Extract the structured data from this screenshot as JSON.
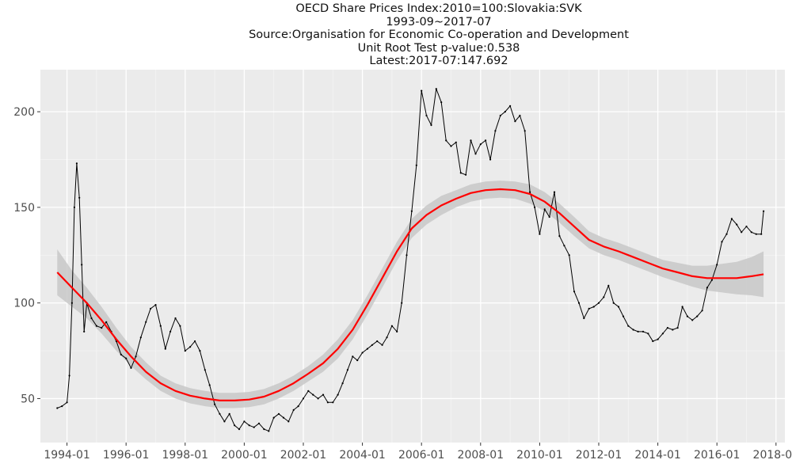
{
  "chart_data": {
    "type": "line",
    "title_lines": [
      "OECD Share Prices Index:2010=100:Slovakia:SVK",
      "1993-09~2017-07",
      "Source:Organisation for Economic Co-operation and Development",
      "Unit Root Test p-value:0.538",
      "Latest:2017-07:147.692"
    ],
    "xlabel": "",
    "ylabel": "",
    "x_tick_labels": [
      "1994-01",
      "1996-01",
      "1998-01",
      "2000-01",
      "2002-01",
      "2004-01",
      "2006-01",
      "2008-01",
      "2010-01",
      "2012-01",
      "2014-01",
      "2016-01",
      "2018-01"
    ],
    "x_tick_values": [
      1994.0,
      1996.0,
      1998.0,
      2000.0,
      2002.0,
      2004.0,
      2006.0,
      2008.0,
      2010.0,
      2012.0,
      2014.0,
      2016.0,
      2018.0
    ],
    "y_ticks": [
      50,
      100,
      150,
      200
    ],
    "xlim": [
      1993.1,
      2018.3
    ],
    "ylim": [
      27,
      222
    ],
    "grid": true,
    "background": "#ebebeb",
    "series": [
      {
        "color": "#000000",
        "points": [
          [
            1993.67,
            45
          ],
          [
            1993.83,
            46
          ],
          [
            1994.0,
            48
          ],
          [
            1994.08,
            62
          ],
          [
            1994.17,
            100
          ],
          [
            1994.25,
            150
          ],
          [
            1994.33,
            173
          ],
          [
            1994.42,
            155
          ],
          [
            1994.5,
            120
          ],
          [
            1994.58,
            85
          ],
          [
            1994.67,
            100
          ],
          [
            1994.83,
            92
          ],
          [
            1995.0,
            88
          ],
          [
            1995.17,
            87
          ],
          [
            1995.33,
            90
          ],
          [
            1995.5,
            85
          ],
          [
            1995.67,
            80
          ],
          [
            1995.83,
            73
          ],
          [
            1996.0,
            71
          ],
          [
            1996.17,
            66
          ],
          [
            1996.33,
            72
          ],
          [
            1996.5,
            82
          ],
          [
            1996.67,
            90
          ],
          [
            1996.83,
            97
          ],
          [
            1997.0,
            99
          ],
          [
            1997.17,
            88
          ],
          [
            1997.33,
            76
          ],
          [
            1997.5,
            85
          ],
          [
            1997.67,
            92
          ],
          [
            1997.83,
            88
          ],
          [
            1998.0,
            75
          ],
          [
            1998.17,
            77
          ],
          [
            1998.33,
            80
          ],
          [
            1998.5,
            75
          ],
          [
            1998.67,
            65
          ],
          [
            1998.83,
            57
          ],
          [
            1999.0,
            47
          ],
          [
            1999.17,
            42
          ],
          [
            1999.33,
            38
          ],
          [
            1999.5,
            42
          ],
          [
            1999.67,
            36
          ],
          [
            1999.83,
            34
          ],
          [
            2000.0,
            38
          ],
          [
            2000.17,
            36
          ],
          [
            2000.33,
            35
          ],
          [
            2000.5,
            37
          ],
          [
            2000.67,
            34
          ],
          [
            2000.83,
            33
          ],
          [
            2001.0,
            40
          ],
          [
            2001.17,
            42
          ],
          [
            2001.33,
            40
          ],
          [
            2001.5,
            38
          ],
          [
            2001.67,
            44
          ],
          [
            2001.83,
            46
          ],
          [
            2002.0,
            50
          ],
          [
            2002.17,
            54
          ],
          [
            2002.33,
            52
          ],
          [
            2002.5,
            50
          ],
          [
            2002.67,
            52
          ],
          [
            2002.83,
            48
          ],
          [
            2003.0,
            48
          ],
          [
            2003.17,
            52
          ],
          [
            2003.33,
            58
          ],
          [
            2003.5,
            65
          ],
          [
            2003.67,
            72
          ],
          [
            2003.83,
            70
          ],
          [
            2004.0,
            74
          ],
          [
            2004.17,
            76
          ],
          [
            2004.33,
            78
          ],
          [
            2004.5,
            80
          ],
          [
            2004.67,
            78
          ],
          [
            2004.83,
            82
          ],
          [
            2005.0,
            88
          ],
          [
            2005.17,
            85
          ],
          [
            2005.33,
            100
          ],
          [
            2005.5,
            125
          ],
          [
            2005.67,
            148
          ],
          [
            2005.83,
            172
          ],
          [
            2006.0,
            211
          ],
          [
            2006.17,
            198
          ],
          [
            2006.33,
            193
          ],
          [
            2006.5,
            212
          ],
          [
            2006.67,
            205
          ],
          [
            2006.83,
            185
          ],
          [
            2007.0,
            182
          ],
          [
            2007.17,
            184
          ],
          [
            2007.33,
            168
          ],
          [
            2007.5,
            167
          ],
          [
            2007.67,
            185
          ],
          [
            2007.83,
            178
          ],
          [
            2008.0,
            183
          ],
          [
            2008.17,
            185
          ],
          [
            2008.33,
            175
          ],
          [
            2008.5,
            190
          ],
          [
            2008.67,
            198
          ],
          [
            2008.83,
            200
          ],
          [
            2009.0,
            203
          ],
          [
            2009.17,
            195
          ],
          [
            2009.33,
            198
          ],
          [
            2009.5,
            190
          ],
          [
            2009.67,
            158
          ],
          [
            2009.83,
            150
          ],
          [
            2010.0,
            136
          ],
          [
            2010.17,
            149
          ],
          [
            2010.33,
            145
          ],
          [
            2010.5,
            158
          ],
          [
            2010.67,
            135
          ],
          [
            2010.83,
            130
          ],
          [
            2011.0,
            125
          ],
          [
            2011.17,
            106
          ],
          [
            2011.33,
            100
          ],
          [
            2011.5,
            92
          ],
          [
            2011.67,
            97
          ],
          [
            2011.83,
            98
          ],
          [
            2012.0,
            100
          ],
          [
            2012.17,
            103
          ],
          [
            2012.33,
            109
          ],
          [
            2012.5,
            100
          ],
          [
            2012.67,
            98
          ],
          [
            2012.83,
            93
          ],
          [
            2013.0,
            88
          ],
          [
            2013.17,
            86
          ],
          [
            2013.33,
            85
          ],
          [
            2013.5,
            85
          ],
          [
            2013.67,
            84
          ],
          [
            2013.83,
            80
          ],
          [
            2014.0,
            81
          ],
          [
            2014.17,
            84
          ],
          [
            2014.33,
            87
          ],
          [
            2014.5,
            86
          ],
          [
            2014.67,
            87
          ],
          [
            2014.83,
            98
          ],
          [
            2015.0,
            93
          ],
          [
            2015.17,
            91
          ],
          [
            2015.33,
            93
          ],
          [
            2015.5,
            96
          ],
          [
            2015.67,
            108
          ],
          [
            2015.83,
            112
          ],
          [
            2016.0,
            120
          ],
          [
            2016.17,
            132
          ],
          [
            2016.33,
            136
          ],
          [
            2016.5,
            144
          ],
          [
            2016.67,
            141
          ],
          [
            2016.83,
            137
          ],
          [
            2017.0,
            140
          ],
          [
            2017.17,
            137
          ],
          [
            2017.33,
            136
          ],
          [
            2017.5,
            136
          ],
          [
            2017.58,
            148
          ]
        ]
      },
      {
        "color": "#ff0000",
        "points": [
          [
            1993.67,
            116
          ],
          [
            1994.17,
            108
          ],
          [
            1994.67,
            100
          ],
          [
            1995.17,
            91
          ],
          [
            1995.67,
            81
          ],
          [
            1996.17,
            72
          ],
          [
            1996.67,
            64
          ],
          [
            1997.17,
            58
          ],
          [
            1997.67,
            54
          ],
          [
            1998.17,
            51.5
          ],
          [
            1998.67,
            50
          ],
          [
            1999.17,
            49
          ],
          [
            1999.67,
            49
          ],
          [
            2000.17,
            49.5
          ],
          [
            2000.67,
            51
          ],
          [
            2001.17,
            54
          ],
          [
            2001.67,
            58
          ],
          [
            2002.17,
            63
          ],
          [
            2002.67,
            68.5
          ],
          [
            2003.17,
            76
          ],
          [
            2003.67,
            86
          ],
          [
            2004.17,
            99
          ],
          [
            2004.67,
            113
          ],
          [
            2005.17,
            127
          ],
          [
            2005.67,
            139
          ],
          [
            2006.17,
            146
          ],
          [
            2006.67,
            151
          ],
          [
            2007.17,
            154.5
          ],
          [
            2007.67,
            157.5
          ],
          [
            2008.17,
            159
          ],
          [
            2008.67,
            159.5
          ],
          [
            2009.17,
            159
          ],
          [
            2009.67,
            157
          ],
          [
            2010.17,
            153
          ],
          [
            2010.67,
            147
          ],
          [
            2011.17,
            140
          ],
          [
            2011.67,
            133
          ],
          [
            2012.17,
            129.5
          ],
          [
            2012.67,
            127
          ],
          [
            2013.17,
            124
          ],
          [
            2013.67,
            121
          ],
          [
            2014.17,
            118
          ],
          [
            2014.67,
            116
          ],
          [
            2015.17,
            114
          ],
          [
            2015.67,
            113
          ],
          [
            2016.17,
            113
          ],
          [
            2016.67,
            113
          ],
          [
            2017.17,
            114
          ],
          [
            2017.58,
            115
          ]
        ]
      }
    ],
    "confidence_band": {
      "color": "#c8c8c8",
      "points": [
        [
          1993.67,
          104,
          128
        ],
        [
          1994.17,
          98,
          117
        ],
        [
          1994.67,
          92,
          108
        ],
        [
          1995.17,
          84,
          98
        ],
        [
          1995.67,
          75,
          87
        ],
        [
          1996.17,
          67,
          77
        ],
        [
          1996.67,
          60,
          69
        ],
        [
          1997.17,
          54,
          62
        ],
        [
          1997.67,
          50,
          58
        ],
        [
          1998.17,
          47.5,
          55.5
        ],
        [
          1998.67,
          46,
          54
        ],
        [
          1999.17,
          45,
          53
        ],
        [
          1999.67,
          45,
          53
        ],
        [
          2000.17,
          45.5,
          53.5
        ],
        [
          2000.67,
          47,
          55
        ],
        [
          2001.17,
          50,
          58
        ],
        [
          2001.67,
          54,
          62
        ],
        [
          2002.17,
          59,
          67
        ],
        [
          2002.67,
          64,
          73
        ],
        [
          2003.17,
          71,
          81
        ],
        [
          2003.67,
          81,
          91
        ],
        [
          2004.17,
          94,
          104
        ],
        [
          2004.67,
          108,
          118
        ],
        [
          2005.17,
          122,
          132
        ],
        [
          2005.67,
          134,
          144
        ],
        [
          2006.17,
          141,
          151
        ],
        [
          2006.67,
          146,
          156
        ],
        [
          2007.17,
          150,
          159
        ],
        [
          2007.67,
          153,
          162
        ],
        [
          2008.17,
          154.5,
          163.5
        ],
        [
          2008.67,
          155,
          164
        ],
        [
          2009.17,
          154.5,
          163.5
        ],
        [
          2009.67,
          152,
          162
        ],
        [
          2010.17,
          148,
          158
        ],
        [
          2010.67,
          142,
          152
        ],
        [
          2011.17,
          135,
          145
        ],
        [
          2011.67,
          128.5,
          137.5
        ],
        [
          2012.17,
          125,
          134
        ],
        [
          2012.67,
          122.5,
          131.5
        ],
        [
          2013.17,
          119.5,
          128.5
        ],
        [
          2013.67,
          116.5,
          125.5
        ],
        [
          2014.17,
          113.5,
          122.5
        ],
        [
          2014.67,
          111,
          121
        ],
        [
          2015.17,
          108.5,
          119.5
        ],
        [
          2015.67,
          106.5,
          119.5
        ],
        [
          2016.17,
          105.5,
          120.5
        ],
        [
          2016.67,
          104.5,
          121.5
        ],
        [
          2017.17,
          104,
          124
        ],
        [
          2017.58,
          103,
          127
        ]
      ]
    }
  }
}
